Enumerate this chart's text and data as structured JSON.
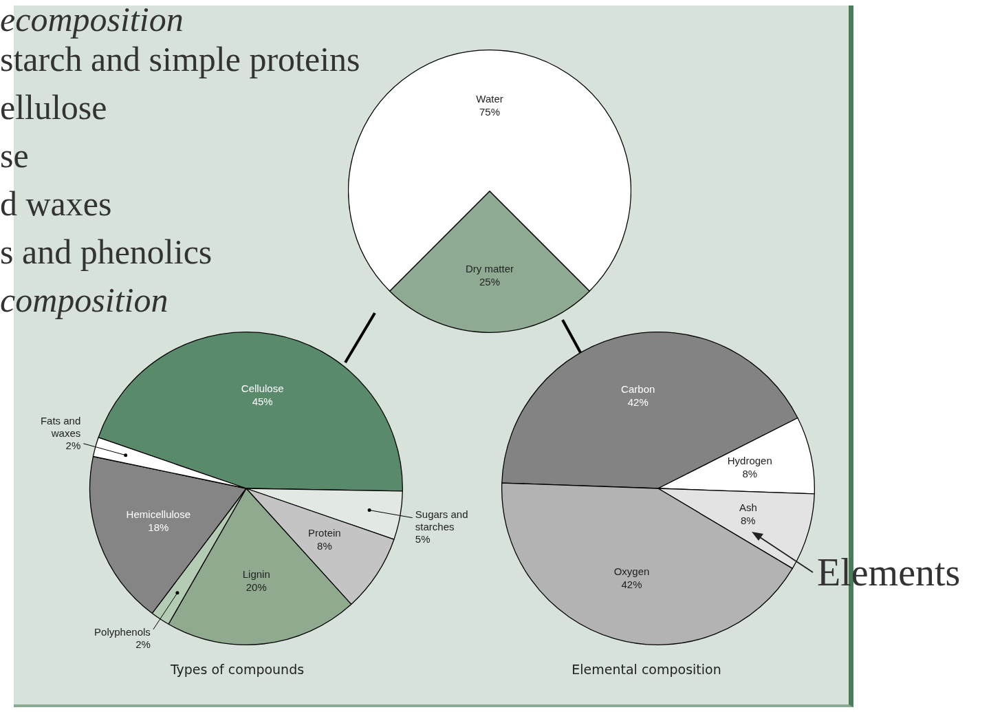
{
  "chart_data": [
    {
      "type": "pie",
      "categories": [
        "Water",
        "Dry matter"
      ],
      "values": [
        75,
        25
      ],
      "colors": [
        "#ffffff",
        "#8faa93"
      ],
      "value_labels": [
        "75%",
        "25%"
      ],
      "annotations": [
        "ecomposition",
        "starch and simple proteins",
        "ellulose",
        "se",
        "d waxes",
        "s and phenolics",
        "composition"
      ]
    },
    {
      "type": "pie",
      "title": "Types of compounds",
      "categories": [
        "Cellulose",
        "Sugars and starches",
        "Protein",
        "Lignin",
        "Polyphenols",
        "Hemicellulose",
        "Fats and waxes"
      ],
      "values": [
        45,
        5,
        8,
        20,
        2,
        18,
        2
      ],
      "colors": [
        "#5a8a6c",
        "#e2e9e2",
        "#c4c4c4",
        "#8faa8f",
        "#b4ccb4",
        "#858585",
        "#ffffff"
      ],
      "value_labels": [
        "45%",
        "5%",
        "8%",
        "20%",
        "2%",
        "18%",
        "2%"
      ]
    },
    {
      "type": "pie",
      "title": "Elemental composition",
      "categories": [
        "Carbon",
        "Hydrogen",
        "Ash",
        "Oxygen"
      ],
      "values": [
        42,
        8,
        8,
        42
      ],
      "colors": [
        "#838383",
        "#ffffff",
        "#e3e3e3",
        "#b3b3b3"
      ],
      "value_labels": [
        "42%",
        "8%",
        "8%",
        "42%"
      ],
      "annotations": [
        "Elements"
      ]
    }
  ]
}
